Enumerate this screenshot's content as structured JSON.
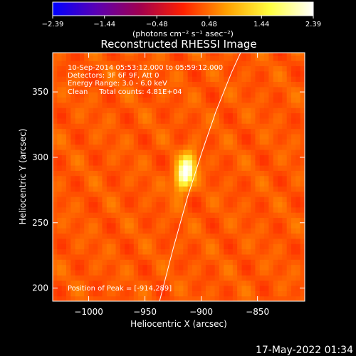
{
  "colorbar": {
    "min": -2.39,
    "max": 2.39,
    "ticks": [
      -2.39,
      -1.44,
      -0.48,
      0.48,
      1.44,
      2.39
    ],
    "tick_labels": [
      "−2.39",
      "−1.44",
      "−0.48",
      "0.48",
      "1.44",
      "2.39"
    ],
    "units_label": "(photons cm⁻² s⁻¹ asec⁻²)",
    "palette": [
      "#0000ff",
      "#5a00b4",
      "#a00050",
      "#ff2000",
      "#ffa000",
      "#ffff40",
      "#ffffff"
    ]
  },
  "chart_data": {
    "type": "heatmap",
    "title": "Reconstructed RHESSI Image",
    "xlabel": "Heliocentric X (arcsec)",
    "ylabel": "Heliocentric Y (arcsec)",
    "xlim": [
      -1032,
      -808
    ],
    "ylim": [
      190,
      380
    ],
    "x_ticks": [
      -1000,
      -950,
      -900,
      -850
    ],
    "x_tick_labels": [
      "−1000",
      "−950",
      "−900",
      "−850"
    ],
    "y_ticks": [
      200,
      250,
      300,
      350
    ],
    "y_tick_labels": [
      "200",
      "250",
      "300",
      "350"
    ],
    "source": {
      "peak_x": -914,
      "peak_y": 289,
      "peak_value": 2.39,
      "sigma_major": 9,
      "sigma_minor": 5,
      "tilt_deg": 20
    },
    "limb_curve": [
      [
        -937,
        190
      ],
      [
        -925,
        230
      ],
      [
        -912,
        270
      ],
      [
        -899,
        305
      ],
      [
        -887,
        335
      ],
      [
        -873,
        365
      ],
      [
        -865,
        380
      ]
    ],
    "annotations": [
      "10-Sep-2014 05:53:12.000 to 05:59:12.000",
      "Detectors: 3F 6F 9F, Att 0",
      "Energy Range: 3.0 - 6.0 keV",
      "Clean     Total counts: 4.81E+04"
    ],
    "peak_label": "Position of Peak = [-914,289]"
  },
  "timestamp": "17-May-2022 01:34"
}
